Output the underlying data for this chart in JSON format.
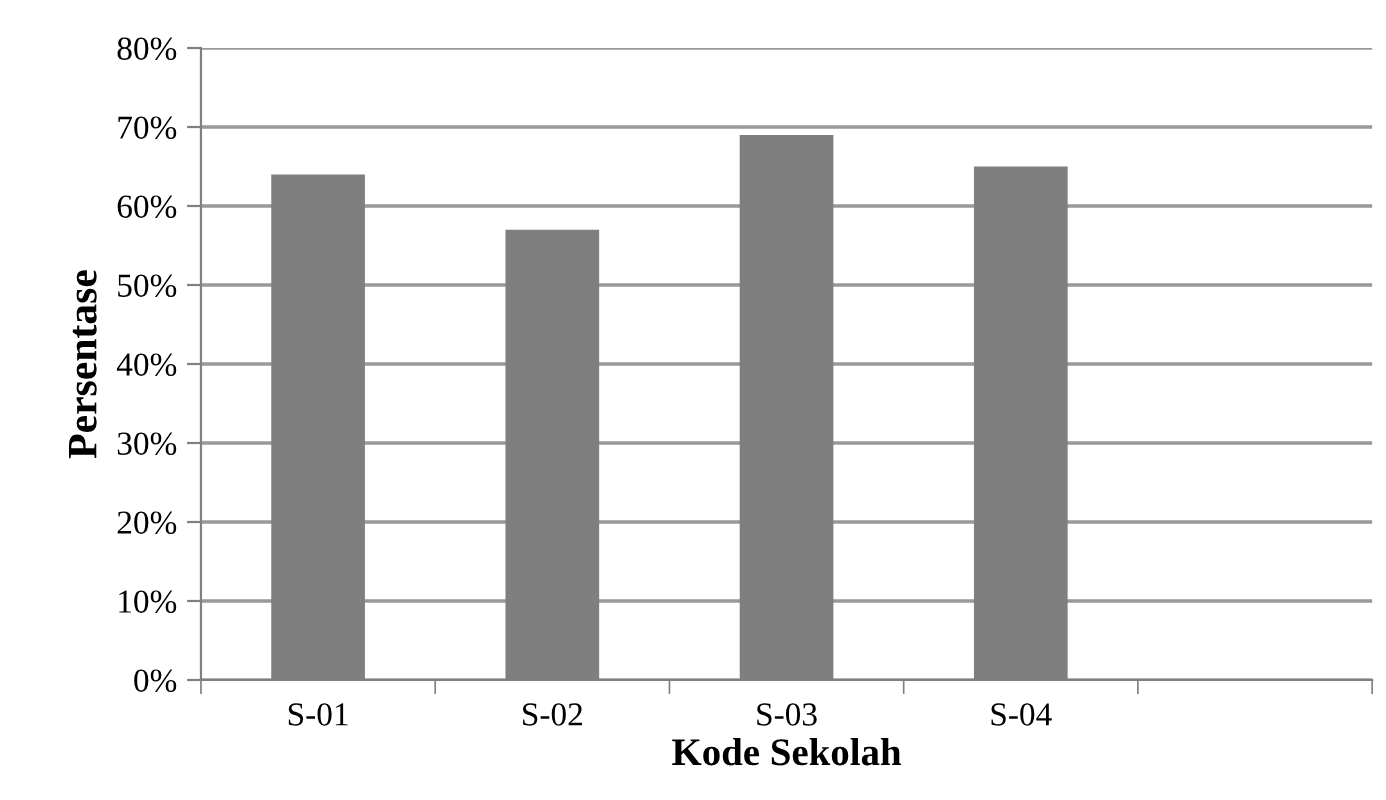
{
  "chart_data": {
    "type": "bar",
    "xlabel": "Kode Sekolah",
    "ylabel": "Persentase",
    "categories": [
      "S-01",
      "S-02",
      "S-03",
      "S-04",
      null
    ],
    "values": [
      64,
      57,
      69,
      65,
      null
    ],
    "color": "#7f7f7f",
    "ylim": [
      0,
      80
    ],
    "yticks": [
      {
        "value": 0,
        "label": "0%"
      },
      {
        "value": 10,
        "label": "10%"
      },
      {
        "value": 20,
        "label": "20%"
      },
      {
        "value": 30,
        "label": "30%"
      },
      {
        "value": 40,
        "label": "40%"
      },
      {
        "value": 50,
        "label": "50%"
      },
      {
        "value": 60,
        "label": "60%"
      },
      {
        "value": 70,
        "label": "70%"
      },
      {
        "value": 80,
        "label": "80%"
      }
    ],
    "grid": "y",
    "legend": false
  }
}
